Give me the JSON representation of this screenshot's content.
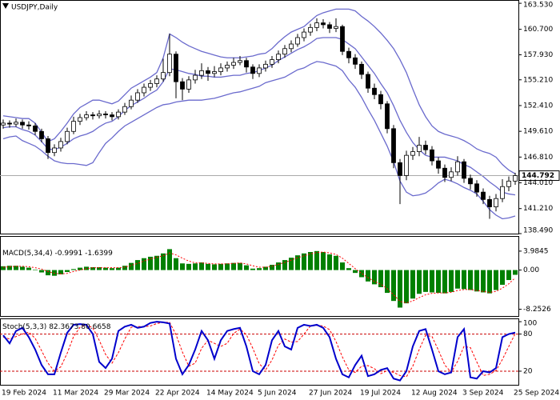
{
  "chart_data": [
    {
      "type": "candlestick",
      "title": "USDJPY,Daily",
      "categories": [
        "19 Feb 2024",
        null,
        null,
        null,
        null,
        null,
        null,
        null,
        "11 Mar 2024",
        null,
        null,
        null,
        null,
        null,
        null,
        null,
        "29 Mar 2024",
        null,
        null,
        null,
        null,
        null,
        null,
        null,
        "22 Apr 2024",
        null,
        null,
        null,
        null,
        null,
        null,
        null,
        "14 May 2024",
        null,
        null,
        null,
        null,
        null,
        null,
        null,
        "5 Jun 2024",
        null,
        null,
        null,
        null,
        null,
        null,
        null,
        "27 Jun 2024",
        null,
        null,
        null,
        null,
        null,
        null,
        null,
        "19 Jul 2024",
        null,
        null,
        null,
        null,
        null,
        null,
        null,
        "12 Aug 2024",
        null,
        null,
        null,
        null,
        null,
        null,
        null,
        "3 Sep 2024",
        null,
        null,
        null,
        null,
        null,
        null,
        null,
        "25 Sep 2024"
      ],
      "open": [
        150.3,
        150.5,
        150.4,
        150.6,
        150.3,
        150.2,
        149.6,
        148.8,
        147.3,
        147.8,
        148.5,
        149.6,
        150.7,
        151.1,
        151.4,
        151.3,
        151.5,
        151.4,
        151.2,
        151.7,
        152.3,
        153.0,
        153.8,
        154.4,
        154.8,
        155.3,
        156.0,
        158.0,
        155.0,
        154.2,
        155.2,
        155.7,
        156.2,
        155.9,
        156.1,
        156.5,
        156.8,
        157.1,
        157.3,
        156.6,
        155.9,
        156.5,
        156.9,
        157.4,
        158.0,
        158.6,
        159.1,
        159.8,
        160.4,
        160.9,
        161.4,
        161.2,
        160.8,
        161.0,
        158.3,
        157.6,
        156.9,
        155.8,
        154.3,
        153.6,
        152.6,
        149.9,
        146.2,
        144.8,
        147.0,
        147.4,
        148.1,
        147.6,
        146.4,
        145.6,
        144.6,
        145.2,
        146.3,
        144.5,
        143.9,
        143.0,
        142.2,
        141.4,
        142.3,
        143.6,
        144.2
      ],
      "high": [
        150.9,
        150.8,
        151.0,
        150.9,
        150.7,
        150.5,
        149.9,
        149.1,
        148.2,
        148.9,
        150.0,
        151.2,
        151.5,
        151.8,
        151.7,
        151.9,
        151.8,
        151.7,
        152.0,
        152.7,
        153.5,
        154.2,
        154.8,
        155.2,
        155.7,
        157.5,
        160.2,
        158.3,
        155.4,
        155.6,
        156.3,
        157.0,
        156.6,
        156.7,
        157.0,
        157.2,
        157.6,
        157.8,
        157.6,
        156.9,
        156.9,
        157.3,
        157.8,
        158.4,
        159.0,
        159.5,
        160.2,
        160.8,
        161.3,
        161.9,
        161.8,
        161.5,
        161.9,
        161.2,
        158.7,
        158.0,
        157.2,
        156.1,
        154.8,
        154.0,
        152.9,
        150.3,
        146.6,
        147.5,
        147.9,
        149.0,
        148.6,
        148.0,
        146.8,
        146.0,
        145.7,
        146.9,
        146.6,
        144.9,
        144.3,
        143.4,
        142.6,
        142.8,
        144.4,
        144.7,
        145.1
      ],
      "low": [
        149.9,
        150.0,
        150.1,
        149.9,
        149.8,
        149.2,
        148.4,
        146.6,
        146.9,
        147.4,
        148.2,
        149.3,
        150.3,
        150.8,
        150.9,
        151.0,
        151.0,
        150.8,
        150.9,
        151.4,
        152.0,
        152.7,
        153.4,
        154.0,
        154.4,
        155.0,
        155.6,
        153.2,
        153.0,
        153.8,
        154.8,
        155.3,
        155.1,
        155.5,
        155.7,
        156.1,
        156.4,
        156.8,
        156.0,
        155.3,
        155.5,
        156.1,
        156.5,
        157.0,
        157.6,
        158.2,
        158.8,
        159.4,
        160.0,
        160.5,
        160.8,
        160.3,
        160.4,
        157.9,
        157.0,
        156.4,
        155.3,
        153.8,
        153.1,
        152.0,
        149.4,
        145.6,
        141.7,
        144.3,
        146.5,
        146.9,
        147.1,
        145.9,
        145.0,
        144.1,
        144.2,
        144.8,
        144.0,
        143.3,
        142.5,
        141.7,
        140.1,
        140.9,
        141.9,
        143.1,
        143.8
      ],
      "close": [
        150.5,
        150.4,
        150.6,
        150.3,
        150.2,
        149.6,
        148.8,
        147.3,
        147.8,
        148.5,
        149.6,
        150.7,
        151.1,
        151.4,
        151.3,
        151.5,
        151.4,
        151.2,
        151.7,
        152.3,
        153.0,
        153.8,
        154.4,
        154.8,
        155.3,
        156.0,
        158.0,
        155.0,
        154.2,
        155.2,
        155.7,
        156.2,
        155.9,
        156.1,
        156.5,
        156.8,
        157.1,
        157.3,
        156.6,
        155.9,
        156.5,
        156.9,
        157.4,
        158.0,
        158.6,
        159.1,
        159.8,
        160.4,
        160.9,
        161.4,
        161.2,
        160.8,
        161.0,
        158.3,
        157.6,
        156.9,
        155.8,
        154.3,
        153.6,
        152.6,
        149.9,
        146.2,
        144.8,
        147.0,
        147.4,
        148.1,
        147.6,
        146.4,
        145.6,
        144.6,
        145.2,
        146.3,
        144.5,
        143.9,
        143.0,
        142.2,
        141.4,
        142.3,
        143.6,
        144.2,
        144.792
      ],
      "bands": {
        "color": "#6a6acd",
        "upper": [
          151.3,
          151.2,
          151.1,
          151.0,
          151.0,
          150.5,
          149.5,
          148.5,
          148.8,
          149.6,
          150.5,
          151.5,
          152.2,
          152.6,
          153.0,
          153.0,
          152.8,
          152.6,
          152.9,
          153.6,
          154.3,
          154.7,
          155.1,
          155.5,
          156.0,
          157.6,
          160.2,
          159.8,
          159.3,
          158.9,
          158.6,
          158.3,
          158.1,
          157.9,
          157.7,
          157.6,
          157.6,
          157.6,
          157.7,
          157.8,
          158.0,
          158.1,
          158.6,
          159.3,
          159.9,
          160.4,
          160.7,
          161.0,
          161.6,
          162.2,
          162.5,
          162.7,
          162.9,
          162.9,
          162.9,
          162.7,
          162.1,
          161.6,
          161.0,
          160.3,
          159.5,
          158.6,
          157.4,
          156.0,
          154.2,
          152.5,
          151.2,
          150.2,
          149.6,
          149.3,
          149.1,
          148.9,
          148.6,
          148.2,
          147.7,
          147.4,
          147.2,
          146.8,
          146.0,
          145.4,
          145.0
        ],
        "middle": [
          150.0,
          150.1,
          150.1,
          149.8,
          149.6,
          149.2,
          148.5,
          147.7,
          147.6,
          147.9,
          148.3,
          148.8,
          149.1,
          149.3,
          149.6,
          150.1,
          150.5,
          150.7,
          151.2,
          151.9,
          152.4,
          152.8,
          153.2,
          153.7,
          154.1,
          155.0,
          156.4,
          156.3,
          156.1,
          155.9,
          155.8,
          155.6,
          155.6,
          155.5,
          155.5,
          155.6,
          155.7,
          155.7,
          155.9,
          156.0,
          156.2,
          156.5,
          156.8,
          157.3,
          157.7,
          158.1,
          158.5,
          158.8,
          159.2,
          159.7,
          159.8,
          159.8,
          159.8,
          159.6,
          159.1,
          158.6,
          157.7,
          156.8,
          155.9,
          154.8,
          153.8,
          152.4,
          150.8,
          149.5,
          148.4,
          147.6,
          147.0,
          146.8,
          146.8,
          146.8,
          146.6,
          146.4,
          146.0,
          145.7,
          145.2,
          144.7,
          144.1,
          143.6,
          143.0,
          142.8,
          142.7
        ],
        "lower": [
          148.8,
          149.0,
          149.1,
          148.6,
          148.3,
          148.0,
          147.5,
          146.9,
          146.4,
          146.2,
          146.1,
          146.1,
          146.0,
          145.9,
          146.2,
          147.3,
          148.3,
          148.9,
          149.6,
          150.2,
          150.6,
          151.0,
          151.4,
          151.8,
          152.2,
          152.5,
          152.6,
          152.8,
          152.9,
          153.0,
          153.0,
          153.0,
          153.1,
          153.2,
          153.4,
          153.6,
          153.8,
          153.9,
          154.1,
          154.3,
          154.5,
          154.9,
          155.1,
          155.3,
          155.5,
          155.9,
          156.3,
          156.5,
          156.9,
          157.2,
          157.1,
          156.9,
          156.7,
          156.2,
          155.2,
          154.4,
          153.3,
          152.0,
          150.8,
          149.4,
          148.0,
          146.3,
          144.2,
          143.0,
          142.6,
          142.7,
          142.9,
          143.4,
          144.0,
          144.4,
          144.2,
          143.9,
          143.5,
          143.2,
          142.8,
          142.0,
          141.1,
          140.5,
          140.1,
          140.2,
          140.4
        ]
      },
      "ylim": [
        138.49,
        163.8
      ],
      "yticks": [
        {
          "value": 163.53,
          "label": "163.530"
        },
        {
          "value": 160.7,
          "label": "160.700"
        },
        {
          "value": 157.93,
          "label": "157.930"
        },
        {
          "value": 155.21,
          "label": "155.210"
        },
        {
          "value": 152.41,
          "label": "152.410"
        },
        {
          "value": 149.61,
          "label": "149.610"
        },
        {
          "value": 146.81,
          "label": "146.810"
        },
        {
          "value": 144.01,
          "label": "144.010"
        },
        {
          "value": 141.21,
          "label": "141.210"
        },
        {
          "value": 138.49,
          "label": "138.490"
        }
      ]
    },
    {
      "type": "macd",
      "title": "MACD(5,34,4)",
      "color": "#008000",
      "signal_color": "#ff0000",
      "values": [
        0.8,
        0.9,
        0.9,
        0.7,
        0.5,
        0.1,
        -0.5,
        -1.1,
        -1.2,
        -0.9,
        -0.4,
        0.2,
        0.5,
        0.7,
        0.6,
        0.6,
        0.5,
        0.4,
        0.5,
        0.9,
        1.5,
        2.1,
        2.5,
        2.8,
        3.0,
        3.5,
        4.4,
        2.5,
        1.4,
        1.3,
        1.4,
        1.6,
        1.3,
        1.2,
        1.3,
        1.4,
        1.5,
        1.5,
        1.0,
        0.3,
        0.4,
        0.7,
        1.1,
        1.6,
        2.1,
        2.6,
        3.1,
        3.5,
        3.8,
        4.0,
        3.8,
        3.3,
        3.0,
        1.6,
        0.4,
        -0.6,
        -1.5,
        -2.4,
        -3.0,
        -3.6,
        -4.8,
        -6.5,
        -7.9,
        -7.0,
        -6.0,
        -5.0,
        -4.6,
        -4.7,
        -4.8,
        -4.9,
        -4.6,
        -3.9,
        -4.0,
        -4.2,
        -4.5,
        -4.7,
        -4.9,
        -4.2,
        -3.1,
        -2.1,
        -0.9991
      ],
      "signal": [
        0.6,
        0.7,
        0.8,
        0.8,
        0.7,
        0.5,
        0.2,
        -0.3,
        -0.7,
        -0.8,
        -0.7,
        -0.3,
        0.0,
        0.3,
        0.5,
        0.5,
        0.5,
        0.5,
        0.5,
        0.6,
        1.0,
        1.4,
        1.9,
        2.3,
        2.7,
        3.0,
        3.6,
        3.2,
        2.5,
        1.9,
        1.5,
        1.5,
        1.4,
        1.3,
        1.3,
        1.3,
        1.4,
        1.5,
        1.3,
        0.9,
        0.6,
        0.6,
        0.8,
        1.2,
        1.6,
        2.1,
        2.6,
        3.0,
        3.4,
        3.7,
        3.8,
        3.6,
        3.3,
        2.5,
        1.4,
        0.3,
        -0.7,
        -1.6,
        -2.4,
        -3.0,
        -3.9,
        -5.2,
        -6.6,
        -6.9,
        -6.5,
        -5.8,
        -5.2,
        -4.9,
        -4.8,
        -4.8,
        -4.7,
        -4.3,
        -4.1,
        -4.1,
        -4.3,
        -4.5,
        -4.7,
        -4.5,
        -3.8,
        -2.9,
        -1.6399
      ],
      "ylim": [
        -9.67,
        7.0
      ],
      "yticks": [
        3.9845,
        {
          "value": 0,
          "label": "0.00"
        },
        -8.2526
      ]
    },
    {
      "type": "stochastic",
      "title": "Stoch(5,3,3)",
      "color": "#0000cc",
      "signal_color": "#ff0000",
      "values": [
        78,
        65,
        85,
        90,
        75,
        55,
        30,
        15,
        15,
        50,
        82,
        95,
        96,
        95,
        80,
        35,
        25,
        40,
        85,
        92,
        95,
        90,
        92,
        98,
        100,
        99,
        97,
        40,
        15,
        30,
        55,
        85,
        70,
        40,
        70,
        85,
        88,
        90,
        60,
        20,
        15,
        30,
        70,
        85,
        60,
        55,
        90,
        95,
        93,
        95,
        90,
        75,
        40,
        15,
        10,
        30,
        45,
        12,
        15,
        22,
        25,
        8,
        5,
        20,
        60,
        85,
        88,
        55,
        20,
        15,
        18,
        75,
        88,
        10,
        8,
        20,
        18,
        25,
        75,
        80,
        82.3673
      ],
      "signal": [
        75,
        72,
        76,
        80,
        83,
        73,
        53,
        33,
        20,
        27,
        49,
        76,
        91,
        95,
        90,
        70,
        47,
        33,
        50,
        72,
        91,
        92,
        92,
        93,
        97,
        99,
        99,
        79,
        51,
        28,
        33,
        57,
        70,
        65,
        60,
        65,
        81,
        88,
        79,
        57,
        32,
        22,
        38,
        62,
        72,
        67,
        68,
        80,
        93,
        94,
        93,
        87,
        68,
        43,
        22,
        18,
        28,
        29,
        24,
        16,
        21,
        18,
        13,
        11,
        28,
        55,
        78,
        76,
        54,
        30,
        18,
        36,
        60,
        58,
        35,
        13,
        15,
        21,
        39,
        60,
        80.6658
      ],
      "levels": [
        80,
        20
      ],
      "ylim": [
        -2,
        104
      ],
      "yticks": [
        100,
        80,
        20
      ]
    }
  ]
}
